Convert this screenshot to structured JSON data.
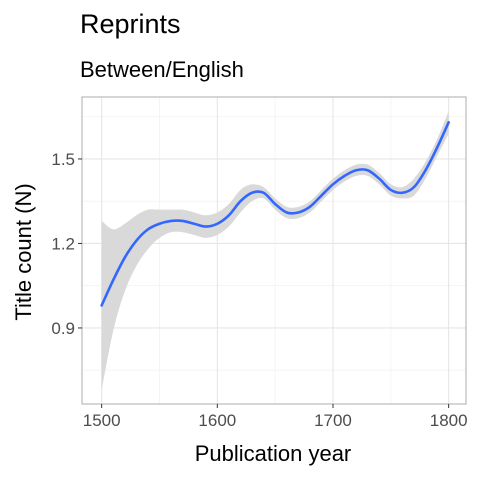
{
  "chart_data": {
    "type": "line",
    "title": "Reprints",
    "subtitle": "Between/English",
    "xlabel": "Publication year",
    "ylabel": "Title count (N)",
    "xlim": [
      1483,
      1815
    ],
    "ylim": [
      0.63,
      1.72
    ],
    "x_ticks": [
      1500,
      1600,
      1700,
      1800
    ],
    "x_tick_labels": [
      "1500",
      "1600",
      "1700",
      "1800"
    ],
    "y_ticks": [
      0.9,
      1.2,
      1.5
    ],
    "y_tick_labels": [
      "0.9",
      "1.2",
      "1.5"
    ],
    "grid": true,
    "legend": "none",
    "series": [
      {
        "x": [
          1500,
          1510,
          1520,
          1530,
          1540,
          1550,
          1560,
          1570,
          1580,
          1590,
          1600,
          1610,
          1620,
          1630,
          1640,
          1650,
          1660,
          1670,
          1680,
          1690,
          1700,
          1710,
          1720,
          1730,
          1740,
          1750,
          1760,
          1770,
          1780,
          1790,
          1800
        ],
        "y": [
          0.98,
          1.07,
          1.15,
          1.21,
          1.25,
          1.27,
          1.28,
          1.28,
          1.27,
          1.26,
          1.27,
          1.3,
          1.35,
          1.38,
          1.38,
          1.34,
          1.31,
          1.31,
          1.33,
          1.37,
          1.41,
          1.44,
          1.46,
          1.46,
          1.43,
          1.39,
          1.38,
          1.4,
          1.46,
          1.54,
          1.63
        ],
        "ci_low": [
          0.68,
          0.89,
          1.03,
          1.12,
          1.18,
          1.22,
          1.24,
          1.24,
          1.23,
          1.22,
          1.23,
          1.26,
          1.31,
          1.35,
          1.36,
          1.32,
          1.29,
          1.29,
          1.31,
          1.35,
          1.39,
          1.42,
          1.44,
          1.44,
          1.41,
          1.37,
          1.36,
          1.37,
          1.43,
          1.51,
          1.59
        ],
        "ci_high": [
          1.28,
          1.25,
          1.27,
          1.3,
          1.32,
          1.32,
          1.32,
          1.32,
          1.31,
          1.3,
          1.31,
          1.34,
          1.39,
          1.41,
          1.4,
          1.36,
          1.33,
          1.33,
          1.35,
          1.39,
          1.43,
          1.46,
          1.48,
          1.48,
          1.45,
          1.41,
          1.4,
          1.43,
          1.49,
          1.57,
          1.67
        ]
      }
    ],
    "colors": {
      "line": "#3366FF",
      "ribbon": "#D9D9D9",
      "grid_major": "#E6E6E6",
      "grid_minor": "#F2F2F2",
      "panel_border": "#B3B3B3",
      "tick_text": "#4D4D4D"
    }
  }
}
